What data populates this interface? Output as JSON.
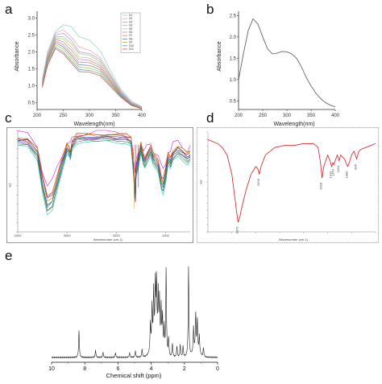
{
  "panels": {
    "a": {
      "letter": "a",
      "ylabel": "Absorbance",
      "xlabel": "Wavelength(nm)",
      "xticks": [
        "200",
        "250",
        "300",
        "350",
        "400"
      ],
      "yticks": [
        "0.5",
        "1.0",
        "1.5",
        "2.0",
        "2.5",
        "3.0"
      ],
      "legend_entries": [
        "S1",
        "S2",
        "S3",
        "S4",
        "S5",
        "S6",
        "S7",
        "S8",
        "S9",
        "S10",
        "S11"
      ]
    },
    "b": {
      "letter": "b",
      "ylabel": "Absorbance",
      "xlabel": "Wavelength(nm)",
      "xticks": [
        "200",
        "250",
        "300",
        "350",
        "400"
      ],
      "yticks": [
        "0.5",
        "1.0",
        "1.5",
        "2.0",
        "2.5"
      ]
    },
    "c": {
      "letter": "c",
      "ylabel": "%T",
      "xlabel": "Wavenumber (cm-1)",
      "xticks": [
        "4000",
        "3000",
        "2000",
        "1000"
      ]
    },
    "d": {
      "letter": "d",
      "ylabel": "%T",
      "xlabel": "Wavenumber (cm-1)",
      "peak_labels": [
        "3370",
        "2926",
        "1618",
        "1416",
        "1370",
        "1261",
        "1080",
        "896"
      ]
    },
    "e": {
      "letter": "e",
      "xlabel": "Chemical shift (ppm)",
      "xticks": [
        "10",
        "8",
        "6",
        "4",
        "2",
        "0"
      ]
    }
  },
  "chart_data": [
    {
      "panel": "a",
      "type": "line",
      "xlabel": "Wavelength(nm)",
      "ylabel": "Absorbance",
      "xlim": [
        200,
        400
      ],
      "ylim": [
        0.3,
        3.2
      ],
      "legend": "top-right",
      "series_colors": [
        "#7dd6d0",
        "#e6a0b4",
        "#8fa0e0",
        "#d6b070",
        "#a0d080",
        "#c080c0",
        "#e08060",
        "#6080a0",
        "#b0b040",
        "#50a0a0",
        "#d05050"
      ],
      "series": [
        {
          "name": "S1",
          "x": [
            210,
            220,
            235,
            250,
            265,
            280,
            300,
            320,
            340,
            360,
            380,
            400
          ],
          "y": [
            1.2,
            2.0,
            2.6,
            2.8,
            2.75,
            2.45,
            2.35,
            2.05,
            1.45,
            0.9,
            0.55,
            0.38
          ]
        },
        {
          "name": "S2",
          "x": [
            210,
            220,
            235,
            250,
            265,
            280,
            300,
            320,
            340,
            360,
            380,
            400
          ],
          "y": [
            1.15,
            1.95,
            2.55,
            2.65,
            2.45,
            2.15,
            2.05,
            1.85,
            1.35,
            0.85,
            0.52,
            0.37
          ]
        },
        {
          "name": "S3",
          "x": [
            210,
            220,
            235,
            250,
            265,
            280,
            300,
            320,
            340,
            360,
            380,
            400
          ],
          "y": [
            1.12,
            1.9,
            2.5,
            2.55,
            2.35,
            2.0,
            1.95,
            1.78,
            1.3,
            0.82,
            0.5,
            0.36
          ]
        },
        {
          "name": "S4",
          "x": [
            210,
            220,
            235,
            250,
            265,
            280,
            300,
            320,
            340,
            360,
            380,
            400
          ],
          "y": [
            1.1,
            1.88,
            2.45,
            2.45,
            2.25,
            1.95,
            1.9,
            1.72,
            1.26,
            0.8,
            0.49,
            0.35
          ]
        },
        {
          "name": "S5",
          "x": [
            210,
            220,
            235,
            250,
            265,
            280,
            300,
            320,
            340,
            360,
            380,
            400
          ],
          "y": [
            1.08,
            1.85,
            2.42,
            2.38,
            2.15,
            1.85,
            1.82,
            1.66,
            1.22,
            0.78,
            0.48,
            0.35
          ]
        },
        {
          "name": "S6",
          "x": [
            210,
            220,
            235,
            250,
            265,
            280,
            300,
            320,
            340,
            360,
            380,
            400
          ],
          "y": [
            1.06,
            1.82,
            2.38,
            2.3,
            2.05,
            1.78,
            1.75,
            1.6,
            1.18,
            0.76,
            0.47,
            0.34
          ]
        },
        {
          "name": "S7",
          "x": [
            210,
            220,
            235,
            250,
            265,
            280,
            300,
            320,
            340,
            360,
            380,
            400
          ],
          "y": [
            1.04,
            1.78,
            2.33,
            2.22,
            1.96,
            1.7,
            1.68,
            1.54,
            1.14,
            0.74,
            0.46,
            0.34
          ]
        },
        {
          "name": "S8",
          "x": [
            210,
            220,
            235,
            250,
            265,
            280,
            300,
            320,
            340,
            360,
            380,
            400
          ],
          "y": [
            1.02,
            1.75,
            2.28,
            2.15,
            1.9,
            1.62,
            1.6,
            1.48,
            1.1,
            0.72,
            0.45,
            0.33
          ]
        },
        {
          "name": "S9",
          "x": [
            210,
            220,
            235,
            250,
            265,
            280,
            300,
            320,
            340,
            360,
            380,
            400
          ],
          "y": [
            1.0,
            1.7,
            2.22,
            2.08,
            1.82,
            1.55,
            1.52,
            1.42,
            1.06,
            0.7,
            0.44,
            0.33
          ]
        },
        {
          "name": "S10",
          "x": [
            210,
            220,
            235,
            250,
            265,
            280,
            300,
            320,
            340,
            360,
            380,
            400
          ],
          "y": [
            0.98,
            1.66,
            2.15,
            2.0,
            1.74,
            1.48,
            1.45,
            1.36,
            1.02,
            0.68,
            0.43,
            0.32
          ]
        },
        {
          "name": "S11",
          "x": [
            210,
            220,
            235,
            250,
            265,
            280,
            300,
            320,
            340,
            360,
            380,
            400
          ],
          "y": [
            0.95,
            1.6,
            2.1,
            1.95,
            1.68,
            1.42,
            1.4,
            1.3,
            0.98,
            0.66,
            0.42,
            0.32
          ]
        }
      ]
    },
    {
      "panel": "b",
      "type": "line",
      "xlabel": "Wavelength(nm)",
      "ylabel": "Absorbance",
      "xlim": [
        200,
        400
      ],
      "ylim": [
        0.3,
        2.6
      ],
      "series": [
        {
          "x": [
            200,
            210,
            220,
            230,
            240,
            250,
            260,
            270,
            280,
            290,
            300,
            310,
            320,
            330,
            340,
            350,
            360,
            370,
            380,
            390,
            400
          ],
          "y": [
            1.0,
            1.6,
            2.15,
            2.42,
            2.3,
            2.0,
            1.72,
            1.6,
            1.62,
            1.66,
            1.65,
            1.6,
            1.5,
            1.3,
            1.05,
            0.85,
            0.68,
            0.55,
            0.46,
            0.4,
            0.36
          ]
        }
      ]
    },
    {
      "panel": "c",
      "type": "line",
      "xlabel": "Wavenumber (cm-1)",
      "ylabel": "%T",
      "xlim": [
        4000,
        500
      ],
      "ylim": [
        45,
        102
      ],
      "series_colors": [
        "#2030c0",
        "#d020d0",
        "#20a020",
        "#c02020",
        "#20c0c0",
        "#c0a020",
        "#8020a0",
        "#606060",
        "#e06020",
        "#208060"
      ],
      "base_x": [
        4000,
        3800,
        3600,
        3500,
        3400,
        3300,
        3200,
        3100,
        3000,
        2950,
        2930,
        2900,
        2800,
        2600,
        2400,
        2200,
        2000,
        1800,
        1700,
        1650,
        1620,
        1600,
        1500,
        1450,
        1420,
        1380,
        1300,
        1250,
        1150,
        1080,
        1050,
        1000,
        950,
        900,
        850,
        750,
        650,
        550,
        500
      ],
      "base_y": [
        96,
        95,
        88,
        72,
        60,
        62,
        72,
        82,
        92,
        90,
        88,
        93,
        97,
        98,
        98,
        98,
        97,
        97,
        96,
        80,
        66,
        78,
        92,
        86,
        84,
        86,
        90,
        86,
        82,
        72,
        70,
        76,
        86,
        84,
        88,
        90,
        88,
        86,
        88
      ]
    },
    {
      "panel": "d",
      "type": "line",
      "xlabel": "Wavenumber (cm-1)",
      "ylabel": "%T",
      "xlim": [
        4000,
        500
      ],
      "ylim": [
        50,
        102
      ],
      "series": [
        {
          "x": [
            4000,
            3900,
            3800,
            3700,
            3600,
            3500,
            3450,
            3400,
            3370,
            3330,
            3300,
            3200,
            3100,
            3000,
            2960,
            2926,
            2890,
            2800,
            2600,
            2400,
            2200,
            2000,
            1800,
            1700,
            1650,
            1618,
            1580,
            1500,
            1450,
            1416,
            1390,
            1370,
            1330,
            1300,
            1261,
            1230,
            1150,
            1100,
            1080,
            1050,
            1000,
            950,
            896,
            850,
            800,
            700,
            600,
            500
          ],
          "y": [
            98,
            97,
            96,
            94,
            90,
            80,
            70,
            60,
            55,
            58,
            62,
            72,
            80,
            84,
            83,
            80,
            84,
            90,
            94,
            95,
            95,
            96,
            96,
            94,
            86,
            78,
            84,
            90,
            87,
            84,
            86,
            85,
            88,
            90,
            87,
            90,
            88,
            85,
            84,
            86,
            90,
            92,
            88,
            92,
            93,
            94,
            95,
            96
          ]
        }
      ],
      "peak_labels": [
        "3370",
        "2926",
        "1618",
        "1416",
        "1370",
        "1261",
        "1080",
        "896"
      ]
    },
    {
      "panel": "e",
      "type": "line",
      "xlabel": "Chemical shift (ppm)",
      "xlim": [
        10,
        0
      ],
      "peaks": [
        {
          "ppm": 8.35,
          "h": 0.3
        },
        {
          "ppm": 7.35,
          "h": 0.08
        },
        {
          "ppm": 6.9,
          "h": 0.06
        },
        {
          "ppm": 6.15,
          "h": 0.05
        },
        {
          "ppm": 5.3,
          "h": 0.05
        },
        {
          "ppm": 4.95,
          "h": 0.07
        },
        {
          "ppm": 4.55,
          "h": 0.09
        },
        {
          "ppm": 4.05,
          "h": 0.3
        },
        {
          "ppm": 3.95,
          "h": 0.45
        },
        {
          "ppm": 3.85,
          "h": 0.58
        },
        {
          "ppm": 3.75,
          "h": 0.62
        },
        {
          "ppm": 3.68,
          "h": 0.65
        },
        {
          "ppm": 3.58,
          "h": 0.55
        },
        {
          "ppm": 3.5,
          "h": 0.5
        },
        {
          "ppm": 3.4,
          "h": 0.45
        },
        {
          "ppm": 3.32,
          "h": 0.38
        },
        {
          "ppm": 3.22,
          "h": 0.3
        },
        {
          "ppm": 3.1,
          "h": 0.96
        },
        {
          "ppm": 2.95,
          "h": 0.2
        },
        {
          "ppm": 2.72,
          "h": 0.15
        },
        {
          "ppm": 2.45,
          "h": 0.12
        },
        {
          "ppm": 2.25,
          "h": 0.14
        },
        {
          "ppm": 2.08,
          "h": 0.12
        },
        {
          "ppm": 1.75,
          "h": 1.0
        },
        {
          "ppm": 1.45,
          "h": 0.28
        },
        {
          "ppm": 1.32,
          "h": 0.42
        },
        {
          "ppm": 1.22,
          "h": 0.36
        },
        {
          "ppm": 1.1,
          "h": 0.2
        },
        {
          "ppm": 0.85,
          "h": 0.1
        }
      ]
    }
  ]
}
